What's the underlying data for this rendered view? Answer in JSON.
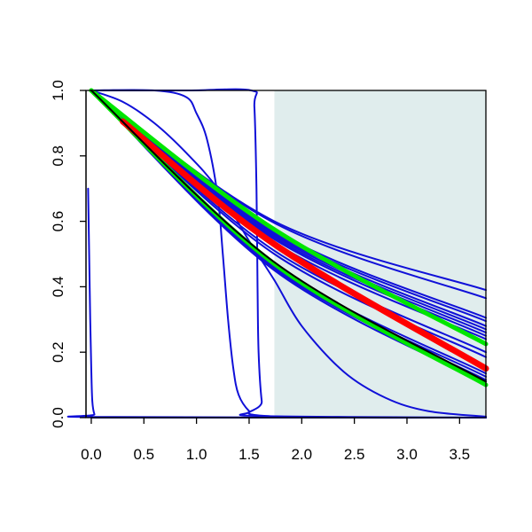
{
  "chart_data": {
    "type": "line",
    "title": "",
    "xlabel": "",
    "ylabel": "",
    "xlim": [
      -0.05,
      3.75
    ],
    "ylim": [
      0.0,
      1.0
    ],
    "x_ticks": [
      0.0,
      0.5,
      1.0,
      1.5,
      2.0,
      2.5,
      3.0,
      3.5
    ],
    "x_tick_labels": [
      "0.0",
      "0.5",
      "1.0",
      "1.5",
      "2.0",
      "2.5",
      "3.0",
      "3.5"
    ],
    "y_ticks": [
      0.0,
      0.2,
      0.4,
      0.6,
      0.8,
      1.0
    ],
    "y_tick_labels": [
      "0.0",
      "0.2",
      "0.4",
      "0.6",
      "0.8",
      "1.0"
    ],
    "grid": false,
    "legend": "none",
    "shaded_region": {
      "x_start": 1.74,
      "x_end": 3.75,
      "color": "#e0eded"
    },
    "colors": {
      "blue": "#1010d8",
      "red": "#ff0000",
      "green": "#00e600",
      "black": "#000000"
    },
    "series": [
      {
        "color": "blue",
        "width": 2,
        "points": [
          [
            0,
            1
          ],
          [
            1.74,
            0.6
          ],
          [
            3.75,
            0.39
          ]
        ]
      },
      {
        "color": "blue",
        "width": 2,
        "points": [
          [
            0,
            1
          ],
          [
            1.74,
            0.595
          ],
          [
            3.75,
            0.365
          ]
        ]
      },
      {
        "color": "blue",
        "width": 2,
        "points": [
          [
            0,
            1
          ],
          [
            1.74,
            0.57
          ],
          [
            3.75,
            0.305
          ]
        ]
      },
      {
        "color": "blue",
        "width": 2,
        "points": [
          [
            0,
            1
          ],
          [
            1.74,
            0.565
          ],
          [
            3.75,
            0.295
          ]
        ]
      },
      {
        "color": "blue",
        "width": 2,
        "points": [
          [
            0,
            1
          ],
          [
            1.74,
            0.56
          ],
          [
            3.75,
            0.28
          ]
        ]
      },
      {
        "color": "blue",
        "width": 2,
        "points": [
          [
            0,
            1
          ],
          [
            1.74,
            0.555
          ],
          [
            3.75,
            0.27
          ]
        ]
      },
      {
        "color": "blue",
        "width": 2,
        "points": [
          [
            0,
            1
          ],
          [
            1.74,
            0.55
          ],
          [
            3.75,
            0.26
          ]
        ]
      },
      {
        "color": "blue",
        "width": 2,
        "points": [
          [
            0,
            1
          ],
          [
            1.74,
            0.545
          ],
          [
            3.75,
            0.25
          ]
        ]
      },
      {
        "color": "blue",
        "width": 2,
        "points": [
          [
            0,
            1
          ],
          [
            1.74,
            0.535
          ],
          [
            3.75,
            0.24
          ]
        ]
      },
      {
        "color": "blue",
        "width": 2,
        "points": [
          [
            0,
            1
          ],
          [
            1.74,
            0.51
          ],
          [
            3.75,
            0.2
          ]
        ]
      },
      {
        "color": "blue",
        "width": 2,
        "points": [
          [
            0,
            1
          ],
          [
            1.74,
            0.5
          ],
          [
            3.75,
            0.185
          ]
        ]
      },
      {
        "color": "blue",
        "width": 2,
        "points": [
          [
            0,
            1
          ],
          [
            1.74,
            0.465
          ],
          [
            3.75,
            0.135
          ]
        ]
      },
      {
        "color": "blue",
        "width": 2,
        "points": [
          [
            0,
            1
          ],
          [
            1.74,
            0.46
          ],
          [
            3.75,
            0.125
          ]
        ]
      },
      {
        "color": "blue",
        "width": 2,
        "points": [
          [
            0,
            1
          ],
          [
            1.74,
            0.455
          ],
          [
            3.75,
            0.115
          ]
        ]
      },
      {
        "color": "blue",
        "width": 2,
        "points": [
          [
            0,
            1
          ],
          [
            1.74,
            0.45
          ],
          [
            3.75,
            0.105
          ]
        ]
      },
      {
        "color": "blue",
        "width": 2,
        "points": [
          [
            0,
            1
          ],
          [
            0.3,
            0.965
          ],
          [
            0.6,
            0.9
          ],
          [
            0.9,
            0.81
          ],
          [
            1.2,
            0.7
          ],
          [
            1.5,
            0.54
          ],
          [
            1.74,
            0.42
          ],
          [
            2.0,
            0.28
          ],
          [
            2.4,
            0.14
          ],
          [
            2.8,
            0.06
          ],
          [
            3.2,
            0.02
          ],
          [
            3.75,
            0.003
          ]
        ]
      },
      {
        "color": "blue",
        "width": 2,
        "points": [
          [
            0,
            1
          ],
          [
            0.6,
            1
          ],
          [
            0.9,
            0.98
          ],
          [
            1.0,
            0.93
          ],
          [
            1.1,
            0.85
          ],
          [
            1.2,
            0.68
          ],
          [
            1.25,
            0.5
          ],
          [
            1.3,
            0.3
          ],
          [
            1.35,
            0.15
          ],
          [
            1.4,
            0.07
          ],
          [
            1.5,
            0.02
          ],
          [
            1.6,
            0.005
          ],
          [
            3.75,
            0
          ]
        ]
      },
      {
        "color": "blue",
        "width": 2,
        "points": [
          [
            0,
            1
          ],
          [
            0.9,
            1
          ],
          [
            1.52,
            1
          ],
          [
            1.55,
            0.95
          ],
          [
            1.57,
            0.7
          ],
          [
            1.58,
            0.4
          ],
          [
            1.59,
            0.2
          ],
          [
            1.62,
            0.05
          ],
          [
            1.66,
            0.005
          ],
          [
            3.75,
            0
          ]
        ]
      },
      {
        "color": "blue",
        "width": 2,
        "points": [
          [
            -0.03,
            0.7
          ],
          [
            -0.02,
            0.5
          ],
          [
            -0.01,
            0.3
          ],
          [
            0,
            0.15
          ],
          [
            0.01,
            0.05
          ],
          [
            0.03,
            0.01
          ],
          [
            0.06,
            0.002
          ],
          [
            3.75,
            0
          ]
        ]
      },
      {
        "color": "blue",
        "width": 2,
        "points": [
          [
            0,
            0
          ],
          [
            3.75,
            0
          ]
        ]
      },
      {
        "color": "green",
        "width": 5,
        "points": [
          [
            0,
            1
          ],
          [
            1.74,
            0.575
          ],
          [
            3.75,
            0.225
          ]
        ]
      },
      {
        "color": "green",
        "width": 5,
        "points": [
          [
            0,
            1
          ],
          [
            1.74,
            0.47
          ],
          [
            3.75,
            0.1
          ]
        ]
      },
      {
        "color": "red",
        "width": 7,
        "points": [
          [
            0.3,
            0.905
          ],
          [
            1.74,
            0.53
          ],
          [
            3.75,
            0.15
          ]
        ]
      },
      {
        "color": "black",
        "width": 2,
        "points": [
          [
            0,
            1
          ],
          [
            1.74,
            0.475
          ],
          [
            3.75,
            0.11
          ]
        ]
      }
    ]
  }
}
